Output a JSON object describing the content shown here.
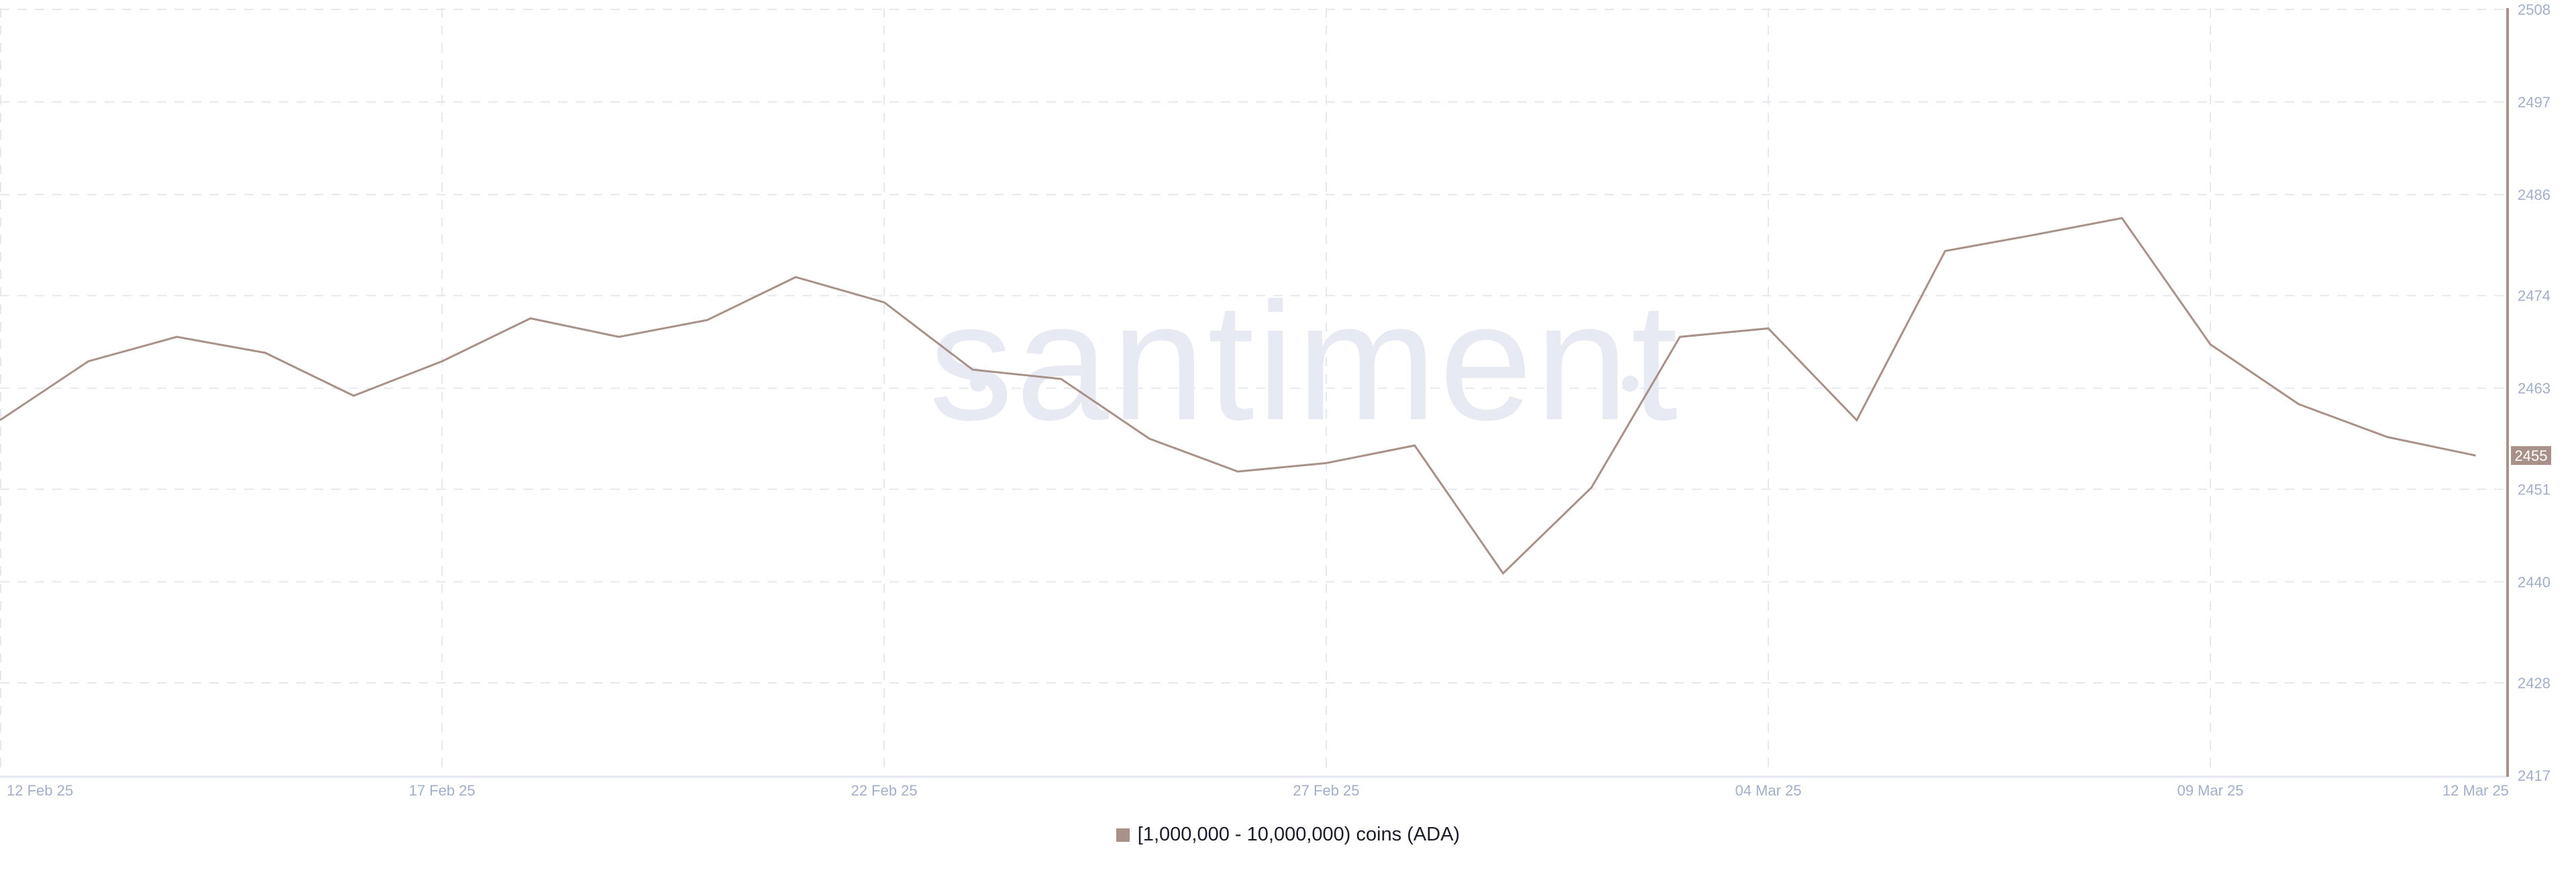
{
  "watermark": "santiment",
  "colors": {
    "series": "#a89189",
    "grid": "#e6e8f0",
    "tick_text": "#a3aec8",
    "last_value_bg": "#a89189"
  },
  "chart_data": {
    "type": "line",
    "title": "",
    "xlabel": "",
    "ylabel": "",
    "x": [
      "12 Feb 25",
      "13 Feb 25",
      "14 Feb 25",
      "15 Feb 25",
      "16 Feb 25",
      "17 Feb 25",
      "18 Feb 25",
      "19 Feb 25",
      "20 Feb 25",
      "21 Feb 25",
      "22 Feb 25",
      "23 Feb 25",
      "24 Feb 25",
      "25 Feb 25",
      "26 Feb 25",
      "27 Feb 25",
      "28 Feb 25",
      "01 Mar 25",
      "02 Mar 25",
      "03 Mar 25",
      "04 Mar 25",
      "05 Mar 25",
      "06 Mar 25",
      "07 Mar 25",
      "08 Mar 25",
      "09 Mar 25",
      "10 Mar 25",
      "11 Mar 25",
      "12 Mar 25"
    ],
    "series": [
      {
        "name": "[1,000,000 - 10,000,000) coins (ADA)",
        "values": [
          2459.2,
          2466.2,
          2469.1,
          2467.2,
          2462.1,
          2466.2,
          2471.3,
          2469.1,
          2471.1,
          2476.2,
          2473.2,
          2465.2,
          2464.1,
          2457.0,
          2453.1,
          2454.1,
          2456.2,
          2441.0,
          2451.2,
          2469.1,
          2470.1,
          2459.2,
          2479.3,
          2481.2,
          2483.2,
          2468.2,
          2461.1,
          2457.2,
          2455
        ]
      }
    ],
    "x_ticks": [
      "12 Feb 25",
      "17 Feb 25",
      "22 Feb 25",
      "27 Feb 25",
      "04 Mar 25",
      "09 Mar 25",
      "12 Mar 25"
    ],
    "y_ticks": [
      "2417",
      "2428",
      "2440",
      "2451",
      "2463",
      "2474",
      "2486",
      "2497",
      "2508"
    ],
    "ylim": [
      2417,
      2508
    ],
    "last_value_label": "2455",
    "grid": true,
    "legend_position": "bottom-center"
  }
}
